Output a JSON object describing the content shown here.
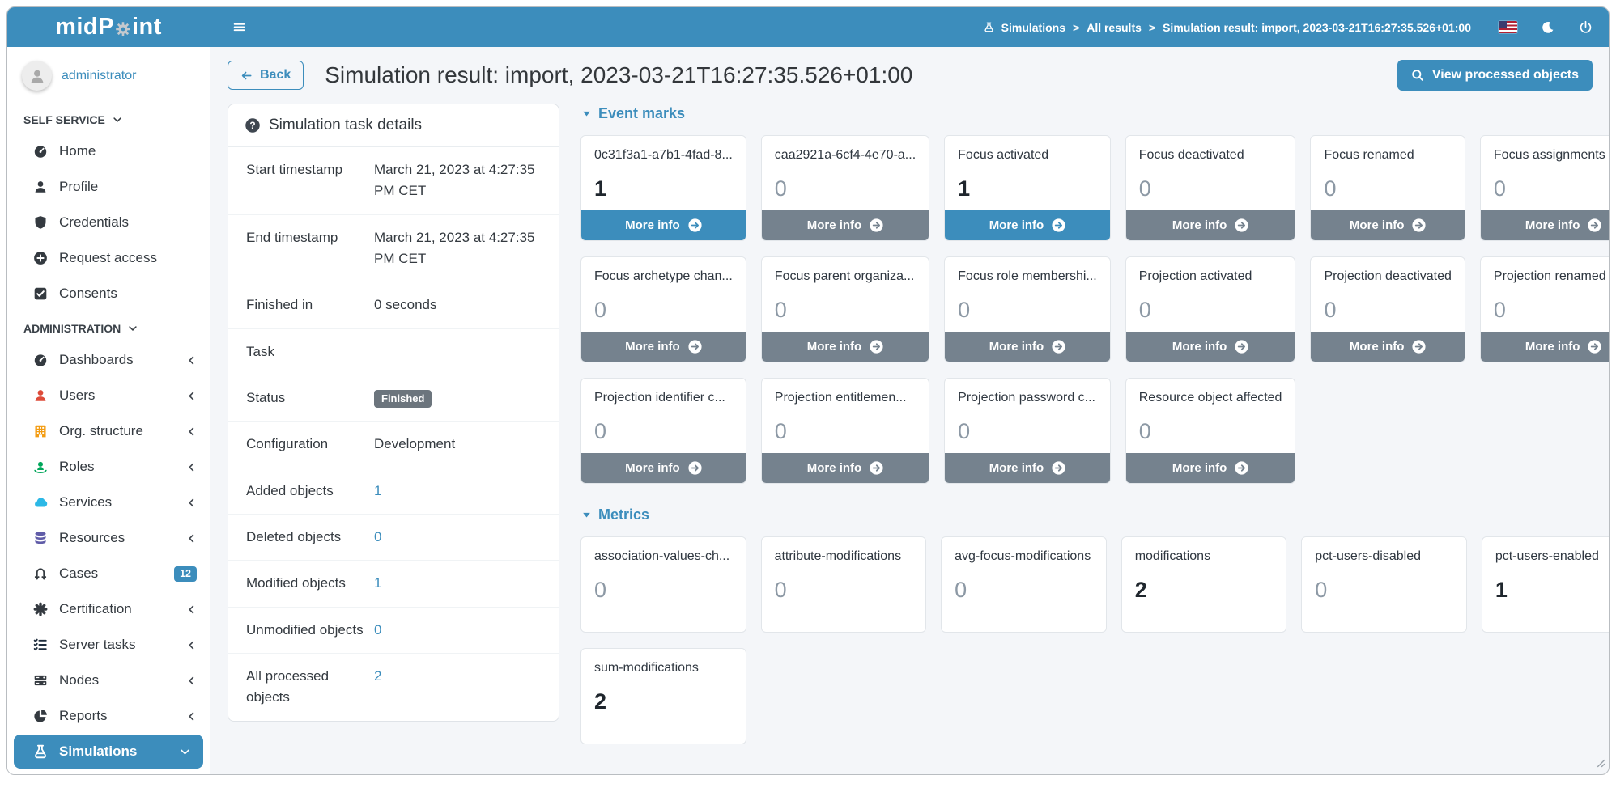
{
  "colors": {
    "accent": "#3c8dbc",
    "more_info_gray": "#75828e",
    "status_badge_gray": "#6c757d",
    "zero_value_gray": "#8d99a5"
  },
  "navbar": {
    "logo_pre": "midP",
    "logo_post": "int",
    "breadcrumbs": [
      "Simulations",
      "All results",
      "Simulation result: import, 2023-03-21T16:27:35.526+01:00"
    ]
  },
  "sidebar": {
    "user": "administrator",
    "sections": [
      {
        "label": "SELF SERVICE",
        "items": [
          {
            "label": "Home",
            "icon": "tachometer",
            "color": "#343a40"
          },
          {
            "label": "Profile",
            "icon": "user",
            "color": "#343a40"
          },
          {
            "label": "Credentials",
            "icon": "shield",
            "color": "#343a40"
          },
          {
            "label": "Request access",
            "icon": "plus-circle",
            "color": "#343a40"
          },
          {
            "label": "Consents",
            "icon": "check-square",
            "color": "#343a40"
          }
        ]
      },
      {
        "label": "ADMINISTRATION",
        "items": [
          {
            "label": "Dashboards",
            "icon": "tachometer",
            "color": "#343a40",
            "right": "chevron-left"
          },
          {
            "label": "Users",
            "icon": "user",
            "color": "#dd4b39",
            "right": "chevron-left"
          },
          {
            "label": "Org. structure",
            "icon": "building",
            "color": "#f39c12",
            "right": "chevron-left"
          },
          {
            "label": "Roles",
            "icon": "roles",
            "color": "#00a65a",
            "right": "chevron-left"
          },
          {
            "label": "Services",
            "icon": "cloud",
            "color": "#2cb8e6",
            "right": "chevron-left"
          },
          {
            "label": "Resources",
            "icon": "database",
            "color": "#605ca8",
            "right": "chevron-left"
          },
          {
            "label": "Cases",
            "icon": "random",
            "color": "#343a40",
            "right": "badge",
            "badge": "12"
          },
          {
            "label": "Certification",
            "icon": "asterisk",
            "color": "#343a40",
            "right": "chevron-left"
          },
          {
            "label": "Server tasks",
            "icon": "list-check",
            "color": "#1f2d3d",
            "right": "chevron-left"
          },
          {
            "label": "Nodes",
            "icon": "server",
            "color": "#343a40",
            "right": "chevron-left"
          },
          {
            "label": "Reports",
            "icon": "pie-chart",
            "color": "#343a40",
            "right": "chevron-left"
          },
          {
            "label": "Simulations",
            "icon": "flask",
            "color": "#ffffff",
            "right": "chevron-down",
            "active": true
          }
        ]
      }
    ]
  },
  "header": {
    "back_label": "Back",
    "title": "Simulation result: import, 2023-03-21T16:27:35.526+01:00",
    "view_button": "View processed objects"
  },
  "details": {
    "title": "Simulation task details",
    "rows": [
      {
        "label": "Start timestamp",
        "value": "March 21, 2023 at 4:27:35 PM CET",
        "type": "text"
      },
      {
        "label": "End timestamp",
        "value": "March 21, 2023 at 4:27:35 PM CET",
        "type": "text"
      },
      {
        "label": "Finished in",
        "value": "0 seconds",
        "type": "text"
      },
      {
        "label": "Task",
        "value": "",
        "type": "text"
      },
      {
        "label": "Status",
        "value": "Finished",
        "type": "badge"
      },
      {
        "label": "Configuration",
        "value": "Development",
        "type": "text"
      },
      {
        "label": "Added objects",
        "value": "1",
        "type": "link"
      },
      {
        "label": "Deleted objects",
        "value": "0",
        "type": "link"
      },
      {
        "label": "Modified objects",
        "value": "1",
        "type": "link"
      },
      {
        "label": "Unmodified objects",
        "value": "0",
        "type": "link"
      },
      {
        "label": "All processed objects",
        "value": "2",
        "type": "link"
      }
    ]
  },
  "event_marks": {
    "title": "Event marks",
    "more_info_label": "More info",
    "cards": [
      {
        "title": "0c31f3a1-a7b1-4fad-8...",
        "value": "1",
        "highlighted": true
      },
      {
        "title": "caa2921a-6cf4-4e70-a...",
        "value": "0",
        "highlighted": false
      },
      {
        "title": "Focus activated",
        "value": "1",
        "highlighted": true
      },
      {
        "title": "Focus deactivated",
        "value": "0",
        "highlighted": false
      },
      {
        "title": "Focus renamed",
        "value": "0",
        "highlighted": false
      },
      {
        "title": "Focus assignments ch...",
        "value": "0",
        "highlighted": false
      },
      {
        "title": "Focus archetype chan...",
        "value": "0",
        "highlighted": false
      },
      {
        "title": "Focus parent organiza...",
        "value": "0",
        "highlighted": false
      },
      {
        "title": "Focus role membershi...",
        "value": "0",
        "highlighted": false
      },
      {
        "title": "Projection activated",
        "value": "0",
        "highlighted": false
      },
      {
        "title": "Projection deactivated",
        "value": "0",
        "highlighted": false
      },
      {
        "title": "Projection renamed",
        "value": "0",
        "highlighted": false
      },
      {
        "title": "Projection identifier c...",
        "value": "0",
        "highlighted": false
      },
      {
        "title": "Projection entitlemen...",
        "value": "0",
        "highlighted": false
      },
      {
        "title": "Projection password c...",
        "value": "0",
        "highlighted": false
      },
      {
        "title": "Resource object affected",
        "value": "0",
        "highlighted": false
      }
    ]
  },
  "metrics": {
    "title": "Metrics",
    "cards": [
      {
        "title": "association-values-ch...",
        "value": "0"
      },
      {
        "title": "attribute-modifications",
        "value": "0"
      },
      {
        "title": "avg-focus-modifications",
        "value": "0"
      },
      {
        "title": "modifications",
        "value": "2"
      },
      {
        "title": "pct-users-disabled",
        "value": "0"
      },
      {
        "title": "pct-users-enabled",
        "value": "1"
      },
      {
        "title": "sum-modifications",
        "value": "2"
      }
    ]
  }
}
